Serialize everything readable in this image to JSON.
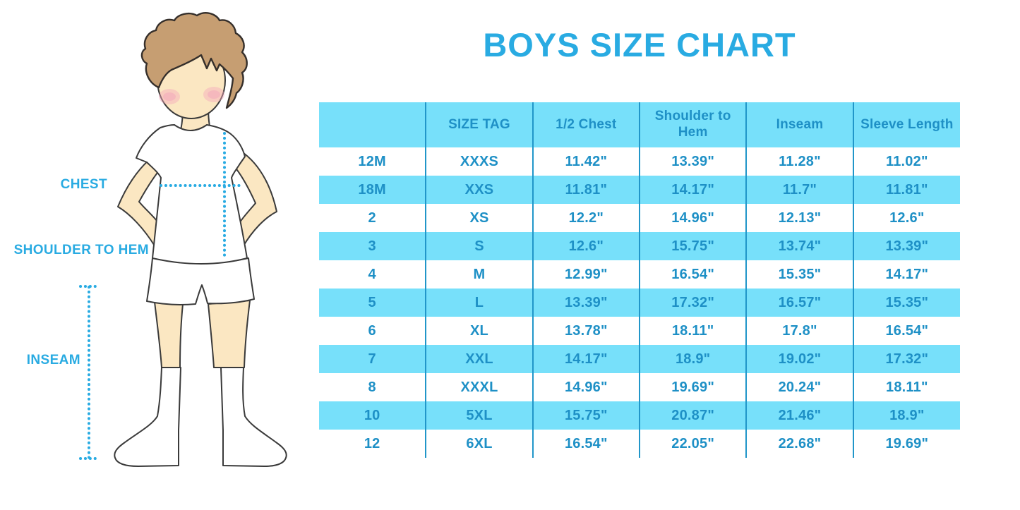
{
  "chart_data": {
    "type": "table",
    "title": "BOYS SIZE CHART",
    "columns": [
      "",
      "SIZE TAG",
      "1/2 Chest",
      "Shoulder to Hem",
      "Inseam",
      "Sleeve Length"
    ],
    "rows": [
      [
        "12M",
        "XXXS",
        "11.42\"",
        "13.39\"",
        "11.28\"",
        "11.02\""
      ],
      [
        "18M",
        "XXS",
        "11.81\"",
        "14.17\"",
        "11.7\"",
        "11.81\""
      ],
      [
        "2",
        "XS",
        "12.2\"",
        "14.96\"",
        "12.13\"",
        "12.6\""
      ],
      [
        "3",
        "S",
        "12.6\"",
        "15.75\"",
        "13.74\"",
        "13.39\""
      ],
      [
        "4",
        "M",
        "12.99\"",
        "16.54\"",
        "15.35\"",
        "14.17\""
      ],
      [
        "5",
        "L",
        "13.39\"",
        "17.32\"",
        "16.57\"",
        "15.35\""
      ],
      [
        "6",
        "XL",
        "13.78\"",
        "18.11\"",
        "17.8\"",
        "16.54\""
      ],
      [
        "7",
        "XXL",
        "14.17\"",
        "18.9\"",
        "19.02\"",
        "17.32\""
      ],
      [
        "8",
        "XXXL",
        "14.96\"",
        "19.69\"",
        "20.24\"",
        "18.11\""
      ],
      [
        "10",
        "5XL",
        "15.75\"",
        "20.87\"",
        "21.46\"",
        "18.9\""
      ],
      [
        "12",
        "6XL",
        "16.54\"",
        "22.05\"",
        "22.68\"",
        "19.69\""
      ]
    ]
  },
  "figure": {
    "labels": {
      "chest": "CHEST",
      "shoulder_to_hem": "SHOULDER TO HEM",
      "inseam": "INSEAM"
    }
  },
  "colors": {
    "accent": "#29ABE2",
    "table_fill": "#77E0FA",
    "table_text": "#1E90C6",
    "divider": "#2196C9"
  }
}
